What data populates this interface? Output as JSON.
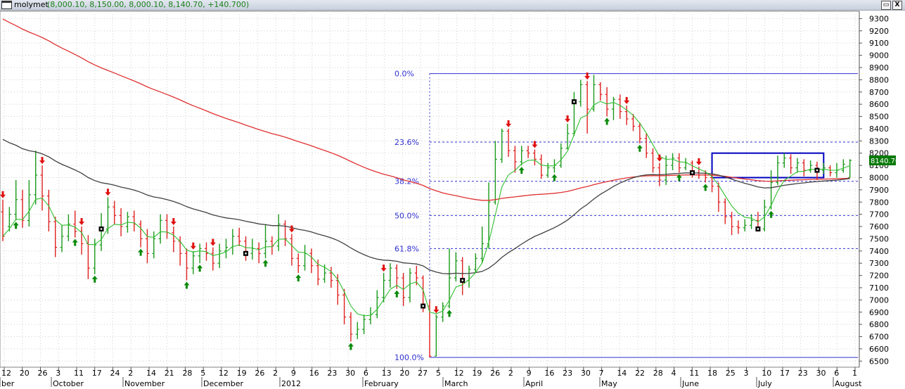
{
  "window": {
    "name": "molymet",
    "ohlc_text": "(8,000.10, 8,150.00, 8,000.10, 8,140.70, +140.700)",
    "restore_label": "▭",
    "close_label": "X"
  },
  "colors": {
    "up_bar": "#1a9a1a",
    "down_bar": "#e02020",
    "ma_long": "#e03030",
    "ma_mid": "#404040",
    "ma_short": "#30c030",
    "fib": "#3030d0",
    "last_price_bg": "#0a7a0a"
  },
  "chart_data": {
    "type": "candlestick",
    "yaxis": {
      "ticks": [
        6500,
        6600,
        6700,
        6800,
        6900,
        7000,
        7100,
        7200,
        7300,
        7400,
        7500,
        7600,
        7700,
        7800,
        7900,
        8000,
        8100,
        8200,
        8300,
        8400,
        8500,
        8600,
        8700,
        8800,
        8900,
        9000,
        9100,
        9200,
        9300
      ],
      "labels": [
        "6500",
        "6600",
        "6700",
        "6800",
        "6900",
        "7000",
        "7100",
        "7200",
        "7300",
        "7400",
        "7500",
        "7600",
        "7700",
        "7800",
        "7900",
        "8000",
        "8100",
        "8200",
        "8300",
        "8400",
        "8500",
        "8600",
        "8700",
        "8800",
        "8900",
        "9000",
        "9100",
        "9200",
        "9300"
      ]
    },
    "xaxis": {
      "day_ticks": [
        "12",
        "20",
        "26",
        "3",
        "11",
        "17",
        "24",
        "2",
        "14",
        "21",
        "28",
        "5",
        "12",
        "19",
        "26",
        "2",
        "9",
        "16",
        "23",
        "30",
        "6",
        "13",
        "20",
        "27",
        "5",
        "12",
        "19",
        "26",
        "2",
        "9",
        "16",
        "23",
        "30",
        "7",
        "14",
        "22",
        "28",
        "4",
        "11",
        "18",
        "25",
        "3",
        "10",
        "17",
        "23",
        "30",
        "6",
        "1"
      ],
      "month_labels": [
        "ber",
        "October",
        "November",
        "December",
        "2012",
        "February",
        "March",
        "April",
        "May",
        "June",
        "July",
        "August"
      ]
    },
    "last_price": "8140.70",
    "fibonacci": {
      "high": 8850,
      "low": 6530,
      "levels": [
        {
          "label": "0.0%",
          "price": 8850
        },
        {
          "label": "23.6%",
          "price": 8290
        },
        {
          "label": "38.2%",
          "price": 7970
        },
        {
          "label": "50.0%",
          "price": 7690
        },
        {
          "label": "61.8%",
          "price": 7420
        },
        {
          "label": "100.0%",
          "price": 6530
        }
      ]
    },
    "box": {
      "price_top": 8200,
      "price_bottom": 8000,
      "start_day": 108,
      "end_day": 125
    },
    "bars": [
      [
        7720,
        7520,
        7820,
        7480
      ],
      [
        7600,
        7700,
        7760,
        7560
      ],
      [
        7700,
        7820,
        7980,
        7650
      ],
      [
        7820,
        7650,
        7900,
        7590
      ],
      [
        7650,
        7860,
        7980,
        7600
      ],
      [
        7860,
        8020,
        8220,
        7780
      ],
      [
        8020,
        7850,
        8100,
        7730
      ],
      [
        7850,
        7640,
        7900,
        7560
      ],
      [
        7640,
        7430,
        7680,
        7350
      ],
      [
        7430,
        7520,
        7610,
        7390
      ],
      [
        7520,
        7620,
        7700,
        7480
      ],
      [
        7620,
        7560,
        7730,
        7510
      ],
      [
        7560,
        7460,
        7600,
        7370
      ],
      [
        7460,
        7260,
        7530,
        7170
      ],
      [
        7260,
        7450,
        7500,
        7210
      ],
      [
        7450,
        7580,
        7710,
        7400
      ],
      [
        7580,
        7760,
        7840,
        7540
      ],
      [
        7760,
        7690,
        7810,
        7620
      ],
      [
        7690,
        7600,
        7750,
        7520
      ],
      [
        7600,
        7680,
        7720,
        7550
      ],
      [
        7680,
        7620,
        7730,
        7560
      ],
      [
        7620,
        7500,
        7650,
        7430
      ],
      [
        7500,
        7380,
        7580,
        7300
      ],
      [
        7380,
        7500,
        7560,
        7340
      ],
      [
        7500,
        7650,
        7700,
        7460
      ],
      [
        7650,
        7550,
        7700,
        7500
      ],
      [
        7550,
        7480,
        7600,
        7390
      ],
      [
        7480,
        7380,
        7520,
        7280
      ],
      [
        7380,
        7260,
        7420,
        7160
      ],
      [
        7260,
        7360,
        7400,
        7210
      ],
      [
        7360,
        7420,
        7460,
        7300
      ],
      [
        7420,
        7380,
        7470,
        7320
      ],
      [
        7380,
        7300,
        7430,
        7240
      ],
      [
        7300,
        7400,
        7460,
        7260
      ],
      [
        7400,
        7430,
        7500,
        7340
      ],
      [
        7430,
        7520,
        7580,
        7370
      ],
      [
        7520,
        7480,
        7590,
        7440
      ],
      [
        7480,
        7380,
        7520,
        7320
      ],
      [
        7380,
        7420,
        7500,
        7330
      ],
      [
        7420,
        7380,
        7470,
        7300
      ],
      [
        7380,
        7480,
        7620,
        7340
      ],
      [
        7480,
        7440,
        7520,
        7370
      ],
      [
        7440,
        7620,
        7700,
        7400
      ],
      [
        7620,
        7500,
        7650,
        7440
      ],
      [
        7500,
        7340,
        7540,
        7280
      ],
      [
        7340,
        7280,
        7380,
        7220
      ],
      [
        7280,
        7380,
        7450,
        7240
      ],
      [
        7380,
        7280,
        7420,
        7220
      ],
      [
        7280,
        7170,
        7330,
        7120
      ],
      [
        7170,
        7220,
        7290,
        7140
      ],
      [
        7220,
        7160,
        7270,
        7100
      ],
      [
        7160,
        7040,
        7210,
        6960
      ],
      [
        7040,
        6860,
        7090,
        6800
      ],
      [
        6860,
        6720,
        6900,
        6660
      ],
      [
        6720,
        6760,
        6820,
        6680
      ],
      [
        6760,
        6840,
        6880,
        6720
      ],
      [
        6840,
        6880,
        6940,
        6800
      ],
      [
        6880,
        7020,
        7080,
        6850
      ],
      [
        7020,
        7160,
        7220,
        6980
      ],
      [
        7160,
        7260,
        7300,
        7100
      ],
      [
        7260,
        7180,
        7290,
        7090
      ],
      [
        7180,
        7020,
        7220,
        6950
      ],
      [
        7020,
        7220,
        7260,
        6980
      ],
      [
        7220,
        7180,
        7280,
        7120
      ],
      [
        7180,
        6950,
        7200,
        6900
      ],
      [
        6950,
        6540,
        7000,
        6530
      ],
      [
        6540,
        6860,
        6880,
        6540
      ],
      [
        6860,
        6950,
        6980,
        6820
      ],
      [
        6950,
        7180,
        7420,
        6930
      ],
      [
        7180,
        7320,
        7390,
        7150
      ],
      [
        7320,
        7160,
        7350,
        7040
      ],
      [
        7160,
        7250,
        7280,
        7100
      ],
      [
        7250,
        7340,
        7380,
        7220
      ],
      [
        7340,
        7460,
        7600,
        7300
      ],
      [
        7460,
        7800,
        7960,
        7420
      ],
      [
        7800,
        8150,
        8300,
        7780
      ],
      [
        8150,
        8380,
        8400,
        8120
      ],
      [
        8380,
        8220,
        8400,
        8170
      ],
      [
        8220,
        8130,
        8260,
        8040
      ],
      [
        8130,
        8220,
        8260,
        8100
      ],
      [
        8220,
        8200,
        8260,
        8160
      ],
      [
        8200,
        8150,
        8230,
        8100
      ],
      [
        8150,
        8020,
        8190,
        7990
      ],
      [
        8020,
        8080,
        8120,
        8000
      ],
      [
        8080,
        8100,
        8150,
        8040
      ],
      [
        8100,
        8240,
        8280,
        8080
      ],
      [
        8240,
        8360,
        8440,
        8230
      ],
      [
        8360,
        8620,
        8700,
        8340
      ],
      [
        8620,
        8760,
        8800,
        8580
      ],
      [
        8760,
        8560,
        8790,
        8360
      ],
      [
        8560,
        8760,
        8840,
        8540
      ],
      [
        8760,
        8680,
        8780,
        8630
      ],
      [
        8680,
        8560,
        8740,
        8500
      ],
      [
        8560,
        8640,
        8660,
        8470
      ],
      [
        8640,
        8540,
        8680,
        8480
      ],
      [
        8540,
        8480,
        8590,
        8430
      ],
      [
        8480,
        8420,
        8520,
        8380
      ],
      [
        8420,
        8320,
        8450,
        8280
      ],
      [
        8320,
        8200,
        8360,
        8160
      ],
      [
        8200,
        8080,
        8240,
        8040
      ],
      [
        8080,
        7980,
        8120,
        7930
      ],
      [
        7980,
        8100,
        8180,
        7940
      ],
      [
        8100,
        8160,
        8200,
        8060
      ],
      [
        8160,
        8080,
        8200,
        8040
      ],
      [
        8080,
        8120,
        8160,
        8060
      ],
      [
        8120,
        8040,
        8140,
        8000
      ],
      [
        8040,
        8020,
        8090,
        7990
      ],
      [
        8020,
        8000,
        8060,
        7960
      ],
      [
        8000,
        7930,
        8030,
        7880
      ],
      [
        7930,
        7800,
        7960,
        7720
      ],
      [
        7800,
        7680,
        7830,
        7620
      ],
      [
        7680,
        7600,
        7720,
        7530
      ],
      [
        7600,
        7590,
        7650,
        7540
      ],
      [
        7590,
        7610,
        7660,
        7560
      ],
      [
        7610,
        7650,
        7700,
        7580
      ],
      [
        7650,
        7580,
        7720,
        7560
      ],
      [
        7580,
        7760,
        7820,
        7560
      ],
      [
        7760,
        7960,
        8060,
        7740
      ],
      [
        7960,
        8120,
        8180,
        7940
      ],
      [
        8120,
        8160,
        8200,
        8080
      ],
      [
        8160,
        8080,
        8190,
        8030
      ],
      [
        8080,
        8120,
        8160,
        8040
      ],
      [
        8120,
        8060,
        8150,
        8010
      ],
      [
        8060,
        8100,
        8140,
        8040
      ],
      [
        8100,
        8060,
        8130,
        7980
      ],
      [
        8060,
        8080,
        8120,
        8030
      ],
      [
        8080,
        8040,
        8100,
        8010
      ],
      [
        8040,
        8060,
        8120,
        8000
      ],
      [
        8060,
        8110,
        8150,
        8040
      ],
      [
        8000.1,
        8140.7,
        8150.0,
        8000.1
      ]
    ],
    "signals": [
      {
        "day": 0,
        "type": "down"
      },
      {
        "day": 2,
        "type": "up"
      },
      {
        "day": 6,
        "type": "down"
      },
      {
        "day": 11,
        "type": "up"
      },
      {
        "day": 12,
        "type": "down"
      },
      {
        "day": 14,
        "type": "up"
      },
      {
        "day": 15,
        "type": "square"
      },
      {
        "day": 16,
        "type": "down"
      },
      {
        "day": 21,
        "type": "up"
      },
      {
        "day": 26,
        "type": "down"
      },
      {
        "day": 28,
        "type": "up"
      },
      {
        "day": 29,
        "type": "down"
      },
      {
        "day": 30,
        "type": "up"
      },
      {
        "day": 32,
        "type": "down"
      },
      {
        "day": 37,
        "type": "square"
      },
      {
        "day": 40,
        "type": "up"
      },
      {
        "day": 44,
        "type": "down"
      },
      {
        "day": 45,
        "type": "up"
      },
      {
        "day": 53,
        "type": "up"
      },
      {
        "day": 58,
        "type": "down"
      },
      {
        "day": 60,
        "type": "up"
      },
      {
        "day": 64,
        "type": "square"
      },
      {
        "day": 66,
        "type": "down"
      },
      {
        "day": 68,
        "type": "up"
      },
      {
        "day": 70,
        "type": "square"
      },
      {
        "day": 77,
        "type": "down"
      },
      {
        "day": 79,
        "type": "up"
      },
      {
        "day": 81,
        "type": "down"
      },
      {
        "day": 84,
        "type": "up"
      },
      {
        "day": 86,
        "type": "down"
      },
      {
        "day": 87,
        "type": "square"
      },
      {
        "day": 89,
        "type": "down"
      },
      {
        "day": 92,
        "type": "up"
      },
      {
        "day": 95,
        "type": "down"
      },
      {
        "day": 97,
        "type": "up"
      },
      {
        "day": 100,
        "type": "down"
      },
      {
        "day": 103,
        "type": "up"
      },
      {
        "day": 105,
        "type": "square"
      },
      {
        "day": 106,
        "type": "down"
      },
      {
        "day": 107,
        "type": "up"
      },
      {
        "day": 115,
        "type": "square"
      },
      {
        "day": 117,
        "type": "up"
      },
      {
        "day": 124,
        "type": "square"
      }
    ]
  }
}
